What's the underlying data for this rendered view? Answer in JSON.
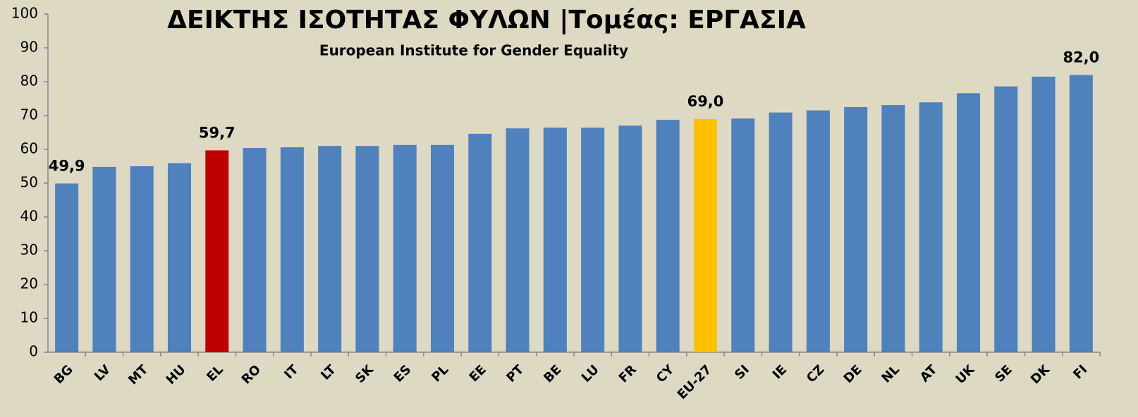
{
  "chart_data": {
    "type": "bar",
    "title": "ΔΕΙΚΤΗΣ ΙΣΟΤΗΤΑΣ ΦΥΛΩΝ |Τομέας: ΕΡΓΑΣΙΑ",
    "subtitle": "European Institute for Gender Equality",
    "categories": [
      "BG",
      "LV",
      "MT",
      "HU",
      "EL",
      "RO",
      "IT",
      "LT",
      "SK",
      "ES",
      "PL",
      "EE",
      "PT",
      "BE",
      "LU",
      "FR",
      "CY",
      "EU-27",
      "SI",
      "IE",
      "CZ",
      "DE",
      "NL",
      "AT",
      "UK",
      "SE",
      "DK",
      "FI"
    ],
    "values": [
      49.9,
      54.8,
      55.0,
      55.9,
      59.7,
      60.4,
      60.6,
      61.0,
      61.0,
      61.3,
      61.3,
      64.6,
      66.2,
      66.4,
      66.4,
      67.0,
      68.7,
      69.0,
      69.1,
      70.9,
      71.5,
      72.5,
      73.1,
      73.9,
      76.6,
      78.6,
      81.5,
      82.0
    ],
    "value_labels": [
      "49,9",
      null,
      null,
      null,
      "59,7",
      null,
      null,
      null,
      null,
      null,
      null,
      null,
      null,
      null,
      null,
      null,
      null,
      "69,0",
      null,
      null,
      null,
      null,
      null,
      null,
      null,
      null,
      null,
      "82,0"
    ],
    "colors": [
      "#4f81bd",
      "#4f81bd",
      "#4f81bd",
      "#4f81bd",
      "#c00000",
      "#4f81bd",
      "#4f81bd",
      "#4f81bd",
      "#4f81bd",
      "#4f81bd",
      "#4f81bd",
      "#4f81bd",
      "#4f81bd",
      "#4f81bd",
      "#4f81bd",
      "#4f81bd",
      "#4f81bd",
      "#ffc000",
      "#4f81bd",
      "#4f81bd",
      "#4f81bd",
      "#4f81bd",
      "#4f81bd",
      "#4f81bd",
      "#4f81bd",
      "#4f81bd",
      "#4f81bd",
      "#4f81bd"
    ],
    "ylim": [
      0,
      100
    ],
    "yticks": [
      0,
      10,
      20,
      30,
      40,
      50,
      60,
      70,
      80,
      90,
      100
    ],
    "grid": false
  }
}
